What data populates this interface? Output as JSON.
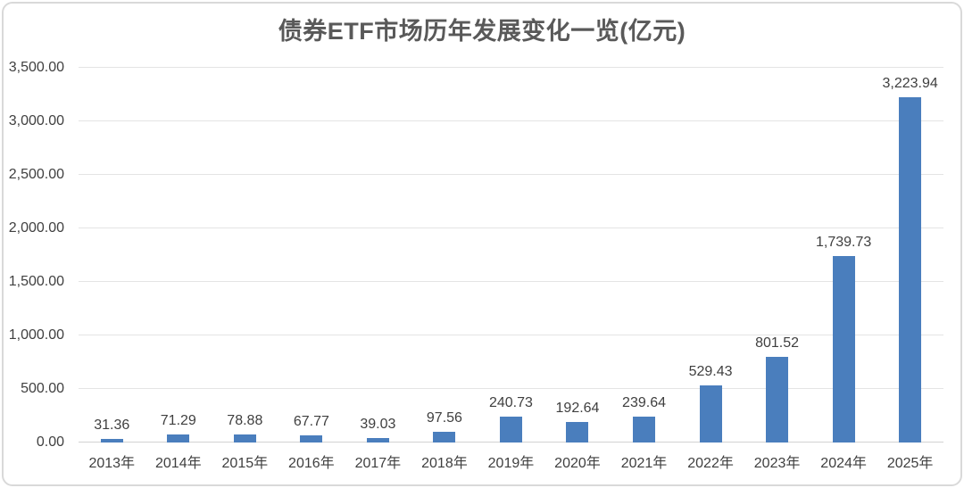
{
  "frame": {
    "border_color": "#d9d9d9",
    "background": "#ffffff"
  },
  "chart_data": {
    "type": "bar",
    "title": "债券ETF市场历年发展变化一览(亿元)",
    "categories": [
      "2013年",
      "2014年",
      "2015年",
      "2016年",
      "2017年",
      "2018年",
      "2019年",
      "2020年",
      "2021年",
      "2022年",
      "2023年",
      "2024年",
      "2025年"
    ],
    "values": [
      31.36,
      71.29,
      78.88,
      67.77,
      39.03,
      97.56,
      240.73,
      192.64,
      239.64,
      529.43,
      801.52,
      1739.73,
      3223.94
    ],
    "value_labels": [
      "31.36",
      "71.29",
      "78.88",
      "67.77",
      "39.03",
      "97.56",
      "240.73",
      "192.64",
      "239.64",
      "529.43",
      "801.52",
      "1,739.73",
      "3,223.94"
    ],
    "xlabel": "",
    "ylabel": "",
    "ylim": [
      0,
      3500
    ],
    "yticks": [
      0,
      500,
      1000,
      1500,
      2000,
      2500,
      3000,
      3500
    ],
    "ytick_labels": [
      "0.00",
      "500.00",
      "1,000.00",
      "1,500.00",
      "2,000.00",
      "2,500.00",
      "3,000.00",
      "3,500.00"
    ],
    "grid": true,
    "legend_position": "none",
    "colors": {
      "bar": "#4a7ebd",
      "gridline": "#e4e4e4",
      "baseline": "#d2d2d2",
      "tick_text": "#404040",
      "value_text": "#3f3f3f",
      "title_text": "#595959"
    }
  }
}
